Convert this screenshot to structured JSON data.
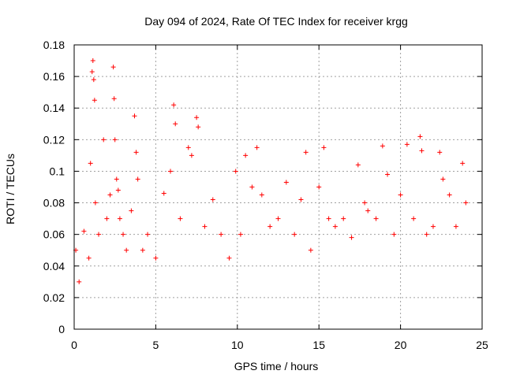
{
  "chart_data": {
    "type": "scatter",
    "title": "Day 094 of 2024, Rate Of TEC Index for receiver krgg",
    "xlabel": "GPS time / hours",
    "ylabel": "ROTI / TECUs",
    "xlim": [
      0,
      25
    ],
    "ylim": [
      0,
      0.18
    ],
    "x_ticks": [
      "0",
      "5",
      "10",
      "15",
      "20",
      "25"
    ],
    "y_ticks": [
      "0",
      "0.02",
      "0.04",
      "0.06",
      "0.08",
      "0.1",
      "0.12",
      "0.14",
      "0.16",
      "0.18"
    ],
    "grid": true,
    "marker": "+",
    "color": "#ff0000",
    "series": [
      {
        "x": [
          0.1,
          0.3,
          0.6,
          0.9,
          1.0,
          1.1,
          1.15,
          1.2,
          1.25,
          1.3,
          1.5,
          1.8,
          2.0,
          2.2,
          2.4,
          2.45,
          2.5,
          2.6,
          2.7,
          2.8,
          3.0,
          3.2,
          3.5,
          3.7,
          3.8,
          3.9,
          4.2,
          4.5,
          5.0,
          5.5,
          5.9,
          6.1,
          6.2,
          6.5,
          7.0,
          7.2,
          7.5,
          7.6,
          8.0,
          8.5,
          9.0,
          9.5,
          9.9,
          10.2,
          10.5,
          10.9,
          11.2,
          11.5,
          12.0,
          12.5,
          13.0,
          13.5,
          13.9,
          14.2,
          14.5,
          15.0,
          15.3,
          15.6,
          16.0,
          16.5,
          17.0,
          17.4,
          17.8,
          18.0,
          18.5,
          18.9,
          19.2,
          19.6,
          20.0,
          20.4,
          20.8,
          21.2,
          21.3,
          21.6,
          22.0,
          22.4,
          22.6,
          23.0,
          23.4,
          23.8,
          24.0
        ],
        "y": [
          0.05,
          0.03,
          0.062,
          0.045,
          0.105,
          0.163,
          0.17,
          0.158,
          0.145,
          0.08,
          0.06,
          0.12,
          0.07,
          0.085,
          0.166,
          0.146,
          0.12,
          0.095,
          0.088,
          0.07,
          0.06,
          0.05,
          0.075,
          0.135,
          0.112,
          0.095,
          0.05,
          0.06,
          0.045,
          0.086,
          0.1,
          0.142,
          0.13,
          0.07,
          0.115,
          0.11,
          0.134,
          0.128,
          0.065,
          0.082,
          0.06,
          0.045,
          0.1,
          0.06,
          0.11,
          0.09,
          0.115,
          0.085,
          0.065,
          0.07,
          0.093,
          0.06,
          0.082,
          0.112,
          0.05,
          0.09,
          0.115,
          0.07,
          0.065,
          0.07,
          0.058,
          0.104,
          0.08,
          0.075,
          0.07,
          0.116,
          0.098,
          0.06,
          0.085,
          0.117,
          0.07,
          0.122,
          0.113,
          0.06,
          0.065,
          0.112,
          0.095,
          0.085,
          0.065,
          0.105,
          0.08
        ]
      }
    ]
  }
}
